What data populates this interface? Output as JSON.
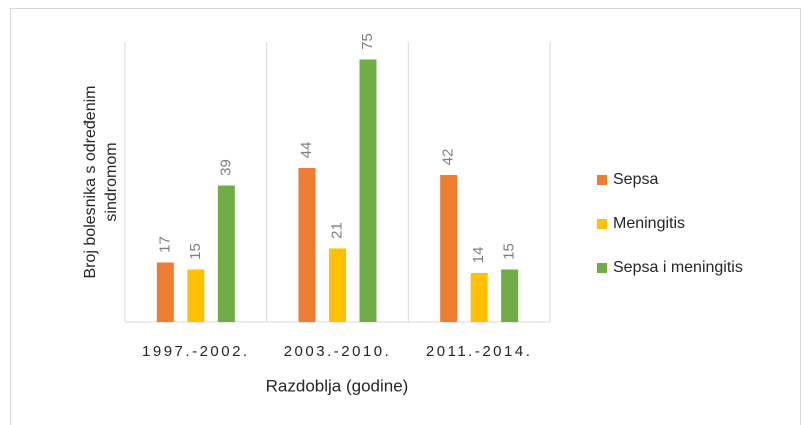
{
  "chart_data": {
    "type": "bar",
    "ylabel": [
      "Broj bolesnika s određenim",
      "sindromom"
    ],
    "xlabel": "Razdoblja (godine)",
    "categories": [
      "1997.-2002.",
      "2003.-2010.",
      "2011.-2014."
    ],
    "series": [
      {
        "name": "Sepsa",
        "color": "#ed7d31",
        "values": [
          17,
          44,
          42
        ]
      },
      {
        "name": "Meningitis",
        "color": "#ffc000",
        "values": [
          15,
          21,
          14
        ]
      },
      {
        "name": "Sepsa i meningitis",
        "color": "#70ad47",
        "values": [
          39,
          75,
          15
        ]
      }
    ],
    "ylim": [
      0,
      80
    ],
    "legend": "right"
  }
}
